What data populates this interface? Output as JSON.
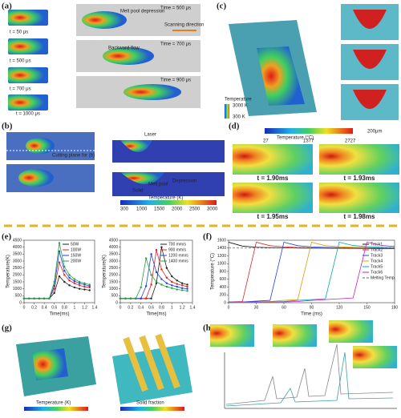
{
  "panels": {
    "a": {
      "label": "(a)",
      "times": [
        "t = 50 μs",
        "t = 500 μs",
        "t = 700 μs",
        "t = 1000 μs"
      ],
      "notes": [
        "Melt pool depression",
        "Scanning direction",
        "Backward flow",
        "Time = 500 μs",
        "Time = 700 μs",
        "Time = 900 μs"
      ]
    },
    "b": {
      "label": "(b)",
      "notes": [
        "Cutting plane for (b)",
        "Laser",
        "Solid",
        "Melt pool",
        "Depression",
        "Temperature (K)"
      ],
      "scale": [
        "300",
        "1000",
        "1500",
        "2000",
        "2500",
        "3000"
      ]
    },
    "c": {
      "label": "(c)",
      "notes": [
        "Temperature",
        "3000 K",
        "300 K"
      ]
    },
    "d": {
      "label": "(d)",
      "notes": [
        "Temperature (°C)",
        "200μm"
      ],
      "scale": [
        "27",
        "1377",
        "2727"
      ],
      "times": [
        "t = 1.90ms",
        "t = 1.93ms",
        "t = 1.95ms",
        "t = 1.98ms"
      ]
    },
    "e": {
      "label": "(e)"
    },
    "f": {
      "label": "(f)"
    },
    "g": {
      "label": "(g)",
      "notes": [
        "Temperature (K)",
        "Solid fraction"
      ]
    },
    "h": {
      "label": "(h)"
    }
  },
  "chart_data": [
    {
      "type": "line",
      "x": [
        0,
        0.1,
        0.2,
        0.3,
        0.4,
        0.5,
        0.6,
        0.7,
        0.8,
        0.9,
        1,
        1.1,
        1.2,
        1.3
      ],
      "xlim": [
        0,
        1.4
      ],
      "xticks": [
        0,
        0.2,
        0.4,
        0.6,
        0.8,
        1,
        1.2,
        1.4
      ],
      "ylim": [
        0,
        4500
      ],
      "yticks": [
        0,
        500,
        1000,
        1500,
        2000,
        2500,
        3000,
        3500,
        4000,
        4500
      ],
      "xlabel": "Time(ms)",
      "ylabel": "Temperature(K)",
      "legend": "upper right",
      "markers": true,
      "series": [
        {
          "name": "50W",
          "color": "#222222",
          "values": [
            300,
            300,
            300,
            300,
            300,
            300,
            700,
            1900,
            1500,
            1250,
            1100,
            1000,
            950,
            900
          ]
        },
        {
          "name": "100W",
          "color": "#e02020",
          "values": [
            300,
            300,
            300,
            300,
            300,
            300,
            1000,
            2900,
            2000,
            1600,
            1400,
            1250,
            1150,
            1100
          ]
        },
        {
          "name": "150W",
          "color": "#2040e0",
          "values": [
            300,
            300,
            300,
            300,
            300,
            300,
            1200,
            3700,
            2300,
            1800,
            1550,
            1400,
            1300,
            1200
          ]
        },
        {
          "name": "200W",
          "color": "#20a040",
          "values": [
            300,
            300,
            300,
            300,
            300,
            300,
            1500,
            4300,
            2600,
            2000,
            1700,
            1500,
            1400,
            1300
          ]
        }
      ]
    },
    {
      "type": "line",
      "x": [
        0,
        0.1,
        0.2,
        0.3,
        0.4,
        0.5,
        0.6,
        0.7,
        0.8,
        0.9,
        1,
        1.1,
        1.2,
        1.3
      ],
      "xlim": [
        0,
        1.4
      ],
      "xticks": [
        0,
        0.2,
        0.4,
        0.6,
        0.8,
        1,
        1.2,
        1.4
      ],
      "ylim": [
        0,
        4500
      ],
      "yticks": [
        0,
        500,
        1000,
        1500,
        2000,
        2500,
        3000,
        3500,
        4000,
        4500
      ],
      "xlabel": "Time(ms)",
      "ylabel": "Temperature(K)",
      "legend": "upper right",
      "markers": true,
      "series": [
        {
          "name": "700 mm/s",
          "color": "#222222",
          "values": [
            300,
            300,
            300,
            300,
            300,
            300,
            300,
            1400,
            4000,
            2500,
            1900,
            1600,
            1400,
            1300
          ]
        },
        {
          "name": "900 mm/s",
          "color": "#e02020",
          "values": [
            300,
            300,
            300,
            300,
            300,
            300,
            1300,
            3800,
            2400,
            1800,
            1500,
            1350,
            1250,
            1150
          ]
        },
        {
          "name": "1200 mm/s",
          "color": "#2040e0",
          "values": [
            300,
            300,
            300,
            300,
            300,
            1200,
            3500,
            2200,
            1700,
            1400,
            1250,
            1150,
            1050,
            1000
          ]
        },
        {
          "name": "1400 mm/s",
          "color": "#20a040",
          "values": [
            300,
            300,
            300,
            300,
            1100,
            3200,
            2000,
            1500,
            1300,
            1150,
            1050,
            950,
            900,
            850
          ]
        }
      ]
    },
    {
      "type": "line",
      "x": [
        0,
        15,
        30,
        45,
        60,
        75,
        90,
        105,
        120,
        135,
        150,
        165,
        180
      ],
      "xlim": [
        0,
        180
      ],
      "xticks": [
        0,
        30,
        60,
        90,
        120,
        150,
        180
      ],
      "ylim": [
        0,
        1600
      ],
      "yticks": [
        0,
        200,
        400,
        600,
        800,
        1000,
        1200,
        1400,
        1600
      ],
      "xlabel": "Time (ms)",
      "ylabel": "Temperature (°C)",
      "legend": "upper right",
      "markers": false,
      "series": [
        {
          "name": "Track1",
          "color": "#111111",
          "values": [
            1550,
            1450,
            1420,
            1410,
            1405,
            1400,
            1398,
            1395,
            1392,
            1390,
            1388,
            1386,
            1385
          ]
        },
        {
          "name": "Track2",
          "color": "#e02020",
          "values": [
            20,
            30,
            1550,
            1460,
            1430,
            1415,
            1408,
            1402,
            1398,
            1395,
            1392,
            1390,
            1388
          ]
        },
        {
          "name": "Track3",
          "color": "#2040e0",
          "values": [
            20,
            20,
            40,
            60,
            1550,
            1460,
            1430,
            1418,
            1410,
            1404,
            1400,
            1396,
            1393
          ]
        },
        {
          "name": "Track4",
          "color": "#d8a000",
          "values": [
            20,
            20,
            20,
            30,
            60,
            80,
            1550,
            1460,
            1432,
            1420,
            1412,
            1406,
            1400
          ]
        },
        {
          "name": "Track5",
          "color": "#00a8a8",
          "values": [
            20,
            20,
            20,
            20,
            30,
            60,
            80,
            100,
            1550,
            1465,
            1435,
            1422,
            1413
          ]
        },
        {
          "name": "Track6",
          "color": "#c020c0",
          "values": [
            20,
            20,
            20,
            20,
            20,
            30,
            60,
            80,
            100,
            120,
            1550,
            1470,
            1440
          ]
        },
        {
          "name": "Melting Temp.",
          "color": "#666666",
          "dash": true,
          "values": [
            1400,
            1400,
            1400,
            1400,
            1400,
            1400,
            1400,
            1400,
            1400,
            1400,
            1400,
            1400,
            1400
          ]
        }
      ]
    }
  ]
}
